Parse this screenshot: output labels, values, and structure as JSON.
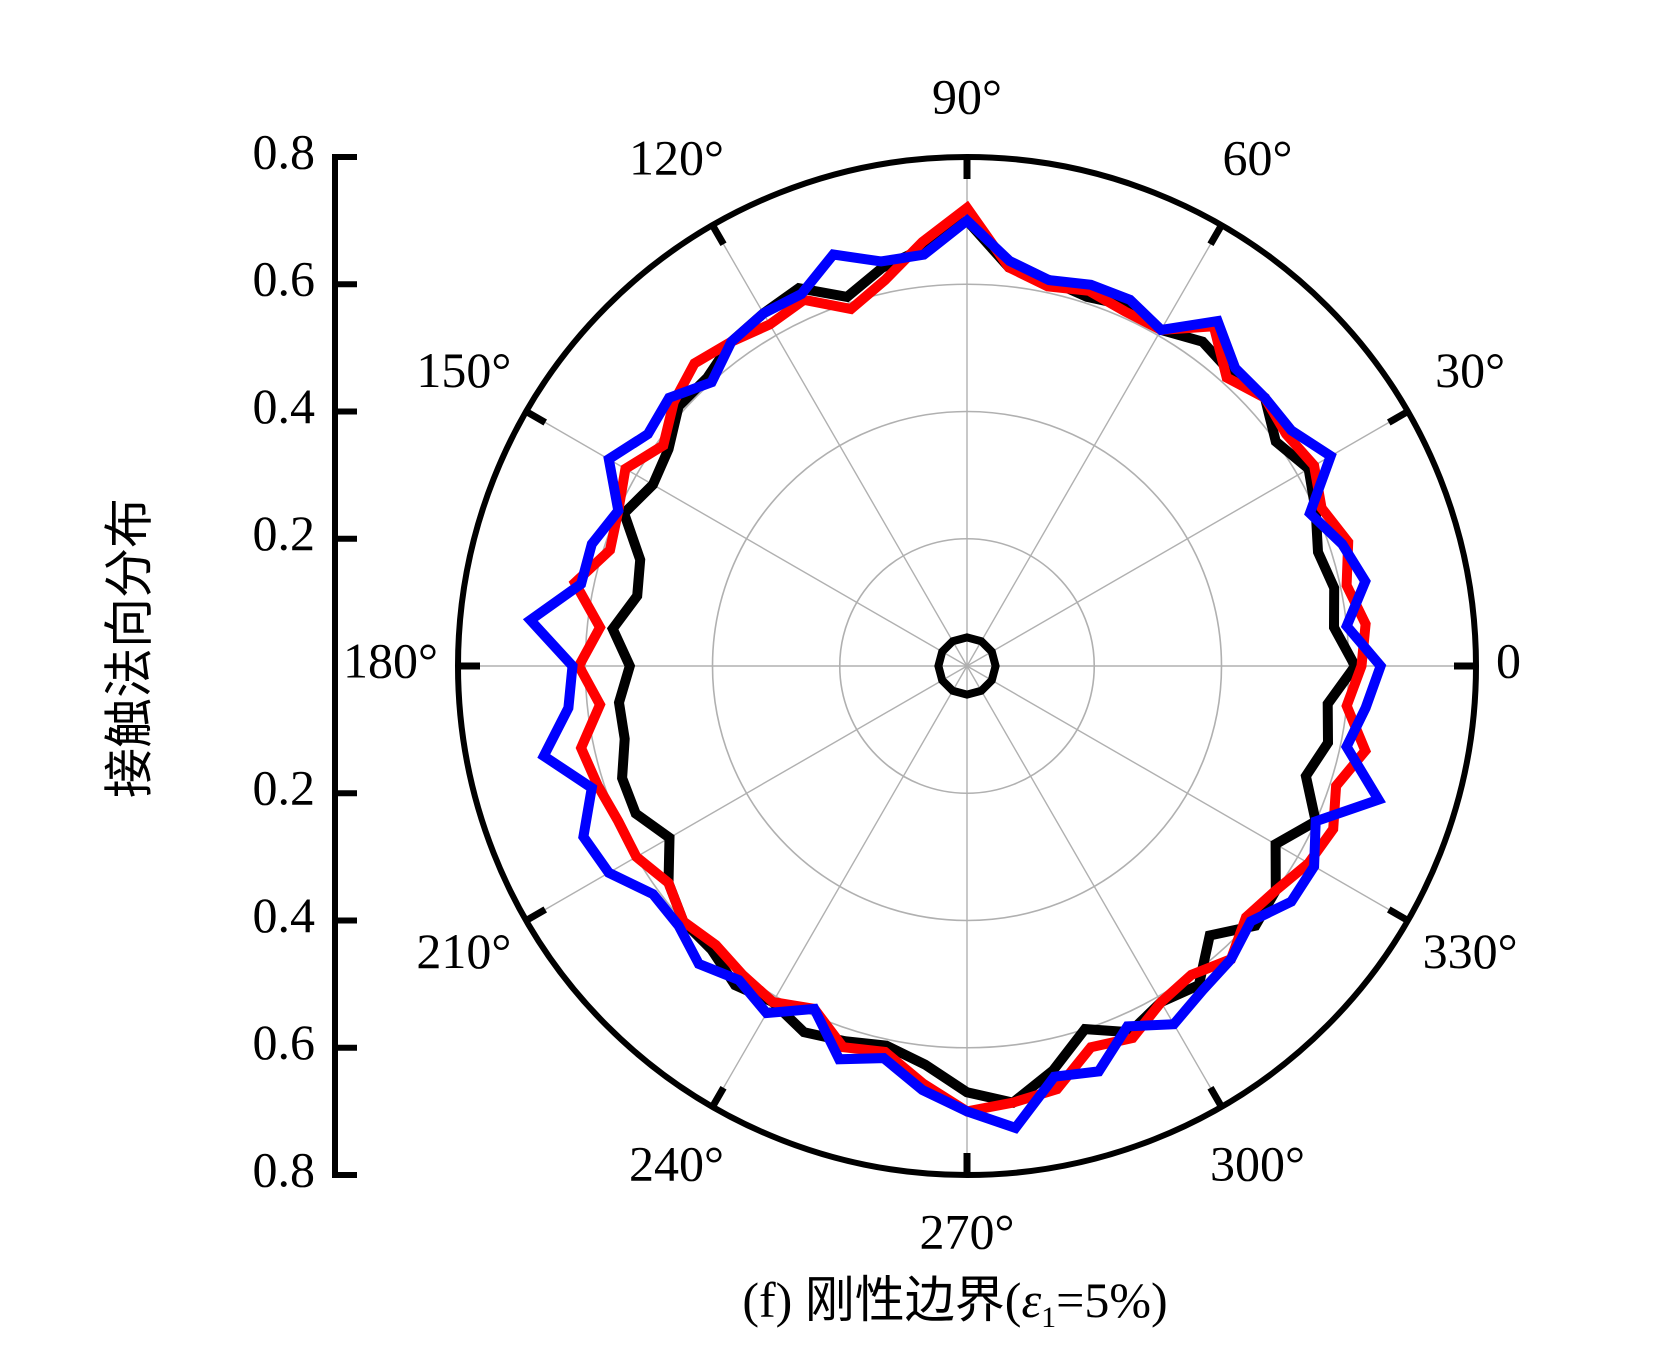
{
  "chart_data": {
    "type": "polar-line",
    "title": "",
    "caption": {
      "prefix": "(f) 刚性边界(",
      "epsilon": "ε",
      "subscript": "1",
      "suffix": "=5%)"
    },
    "ylabel": "接触法向分布",
    "radial_range": [
      0,
      0.8
    ],
    "radial_tick_labels_top": [
      "0.8",
      "0.6",
      "0.4",
      "0.2"
    ],
    "radial_tick_labels_bottom": [
      "0.2",
      "0.4",
      "0.6",
      "0.8"
    ],
    "angle_labels": [
      {
        "deg": 0,
        "text": "0"
      },
      {
        "deg": 30,
        "text": "30°"
      },
      {
        "deg": 60,
        "text": "60°"
      },
      {
        "deg": 90,
        "text": "90°"
      },
      {
        "deg": 120,
        "text": "120°"
      },
      {
        "deg": 150,
        "text": "150°"
      },
      {
        "deg": 180,
        "text": "180°"
      },
      {
        "deg": 210,
        "text": "210°"
      },
      {
        "deg": 240,
        "text": "240°"
      },
      {
        "deg": 270,
        "text": "270°"
      },
      {
        "deg": 300,
        "text": "300°"
      },
      {
        "deg": 330,
        "text": "330°"
      }
    ],
    "grid": true,
    "series": [
      {
        "color": "#000000",
        "angles": [
          0,
          6,
          12,
          18,
          24,
          30,
          36,
          42,
          48,
          54,
          60,
          66,
          72,
          78,
          84,
          90,
          96,
          102,
          108,
          114,
          120,
          126,
          132,
          138,
          144,
          150,
          156,
          162,
          168,
          174,
          180,
          186,
          192,
          198,
          204,
          210,
          216,
          222,
          228,
          234,
          240,
          246,
          252,
          258,
          264,
          270,
          276,
          282,
          288,
          294,
          300,
          306,
          312,
          318,
          324,
          330,
          336,
          342,
          348,
          354
        ],
        "r": [
          0.61,
          0.58,
          0.59,
          0.58,
          0.6,
          0.62,
          0.6,
          0.63,
          0.62,
          0.63,
          0.61,
          0.62,
          0.61,
          0.62,
          0.63,
          0.7,
          0.66,
          0.64,
          0.61,
          0.65,
          0.64,
          0.63,
          0.61,
          0.61,
          0.58,
          0.57,
          0.59,
          0.54,
          0.53,
          0.56,
          0.53,
          0.55,
          0.55,
          0.57,
          0.57,
          0.54,
          0.58,
          0.6,
          0.6,
          0.62,
          0.61,
          0.63,
          0.62,
          0.61,
          0.63,
          0.67,
          0.69,
          0.65,
          0.6,
          0.63,
          0.61,
          0.62,
          0.57,
          0.61,
          0.6,
          0.56,
          0.6,
          0.56,
          0.58,
          0.57
        ]
      },
      {
        "color": "#ff0000",
        "angles": [
          0,
          6,
          12,
          18,
          24,
          30,
          36,
          42,
          48,
          54,
          60,
          66,
          72,
          78,
          84,
          90,
          96,
          102,
          108,
          114,
          120,
          126,
          132,
          138,
          144,
          150,
          156,
          162,
          168,
          174,
          180,
          186,
          192,
          198,
          204,
          210,
          216,
          222,
          228,
          234,
          240,
          246,
          252,
          258,
          264,
          270,
          276,
          282,
          288,
          294,
          300,
          306,
          312,
          318,
          324,
          330,
          336,
          342,
          348,
          354
        ],
        "r": [
          0.62,
          0.63,
          0.61,
          0.63,
          0.61,
          0.63,
          0.62,
          0.63,
          0.61,
          0.66,
          0.61,
          0.61,
          0.62,
          0.61,
          0.63,
          0.72,
          0.67,
          0.62,
          0.59,
          0.63,
          0.62,
          0.63,
          0.64,
          0.62,
          0.59,
          0.62,
          0.6,
          0.59,
          0.63,
          0.58,
          0.61,
          0.58,
          0.62,
          0.61,
          0.6,
          0.6,
          0.58,
          0.6,
          0.59,
          0.6,
          0.61,
          0.59,
          0.63,
          0.62,
          0.66,
          0.7,
          0.69,
          0.68,
          0.63,
          0.64,
          0.61,
          0.6,
          0.62,
          0.59,
          0.6,
          0.62,
          0.63,
          0.61,
          0.64,
          0.6
        ]
      },
      {
        "color": "#0000ff",
        "angles": [
          0,
          6,
          12,
          18,
          24,
          30,
          36,
          42,
          48,
          54,
          60,
          66,
          72,
          78,
          84,
          90,
          96,
          102,
          108,
          114,
          120,
          126,
          132,
          138,
          144,
          150,
          156,
          162,
          168,
          174,
          180,
          186,
          192,
          198,
          204,
          210,
          216,
          222,
          228,
          234,
          240,
          246,
          252,
          258,
          264,
          270,
          276,
          282,
          288,
          294,
          300,
          306,
          312,
          318,
          324,
          330,
          336,
          342,
          348,
          354
        ],
        "r": [
          0.65,
          0.6,
          0.64,
          0.62,
          0.59,
          0.66,
          0.63,
          0.63,
          0.63,
          0.67,
          0.61,
          0.63,
          0.63,
          0.62,
          0.64,
          0.7,
          0.65,
          0.65,
          0.68,
          0.64,
          0.64,
          0.63,
          0.6,
          0.63,
          0.62,
          0.65,
          0.6,
          0.62,
          0.62,
          0.69,
          0.62,
          0.63,
          0.68,
          0.62,
          0.66,
          0.65,
          0.61,
          0.61,
          0.63,
          0.61,
          0.63,
          0.59,
          0.65,
          0.63,
          0.67,
          0.7,
          0.73,
          0.66,
          0.67,
          0.62,
          0.65,
          0.63,
          0.62,
          0.6,
          0.63,
          0.63,
          0.6,
          0.68,
          0.61,
          0.63
        ]
      },
      {
        "color": "#000000",
        "angles": [
          0,
          30,
          60,
          90,
          120,
          150,
          180,
          210,
          240,
          270,
          300,
          330
        ],
        "r": [
          0.045,
          0.045,
          0.045,
          0.045,
          0.045,
          0.045,
          0.045,
          0.045,
          0.045,
          0.045,
          0.045,
          0.045
        ]
      }
    ]
  }
}
